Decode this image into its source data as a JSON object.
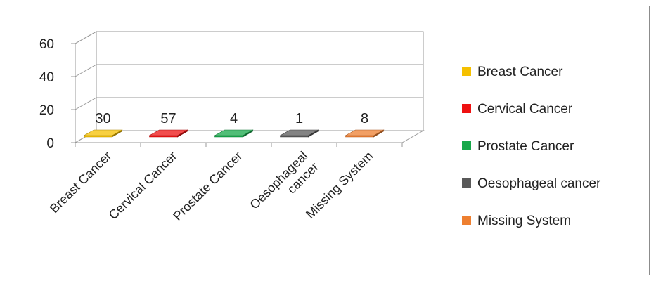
{
  "chart_data": {
    "type": "bar",
    "title": "",
    "xlabel": "",
    "ylabel": "",
    "ylim": [
      0,
      60
    ],
    "yticks": [
      "0",
      "20",
      "40",
      "60"
    ],
    "grid": true,
    "three_d": true,
    "legend_position": "right",
    "categories": [
      {
        "name": "Breast Cancer",
        "lines": [
          "Breast Cancer"
        ]
      },
      {
        "name": "Cervical Cancer",
        "lines": [
          "Cervical Cancer"
        ]
      },
      {
        "name": "Prostate Cancer",
        "lines": [
          "Prostate Cancer"
        ]
      },
      {
        "name": "Oesophageal cancer",
        "lines": [
          "Oesophageal",
          "cancer"
        ]
      },
      {
        "name": "Missing System",
        "lines": [
          "Missing System"
        ]
      }
    ],
    "values": [
      30,
      57,
      4,
      1,
      8
    ],
    "data_labels": [
      "30",
      "57",
      "4",
      "1",
      "8"
    ],
    "colors": [
      "#f5c000",
      "#ee1111",
      "#17a84a",
      "#595959",
      "#ee7f30"
    ],
    "legend": [
      "Breast Cancer",
      "Cervical Cancer",
      "Prostate Cancer",
      "Oesophageal cancer",
      "Missing System"
    ]
  }
}
